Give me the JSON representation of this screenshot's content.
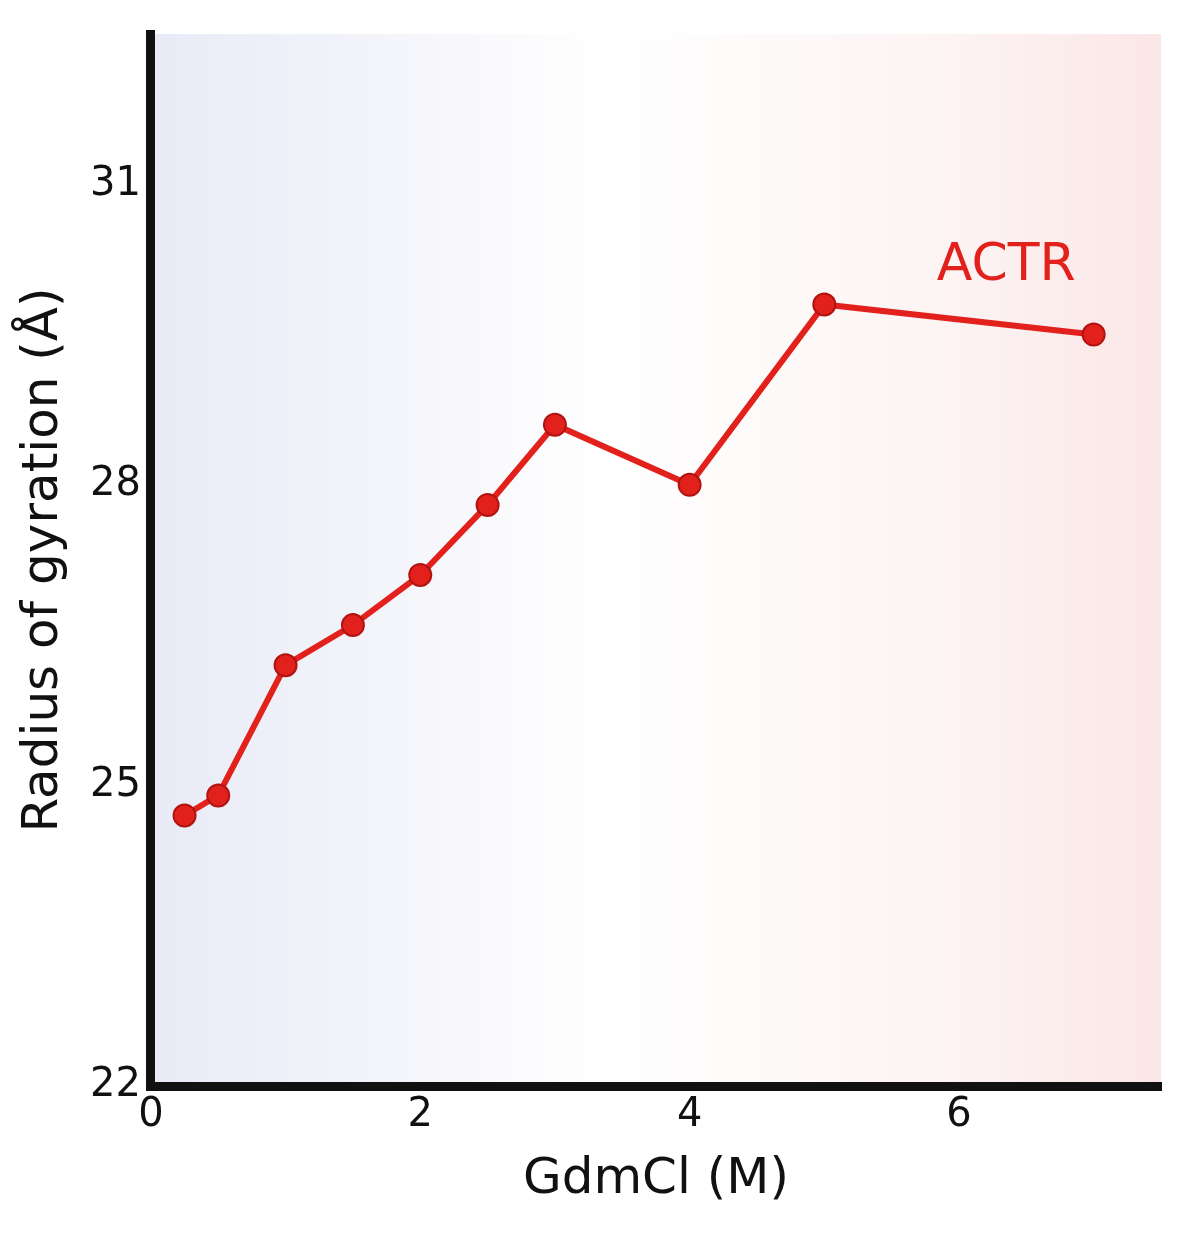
{
  "chart_data": {
    "type": "line",
    "x_label": "GdmCl (M)",
    "y_label": "Radius of gyration (Å)",
    "x": [
      0.25,
      0.5,
      1,
      1.5,
      2,
      2.5,
      3,
      4,
      5,
      7
    ],
    "series": [
      {
        "name": "ACTR",
        "color": "#e3211c",
        "marker": "circle",
        "line_style": "solid",
        "values": [
          24.7,
          24.9,
          26.2,
          26.6,
          27.1,
          27.8,
          28.6,
          28.0,
          29.8,
          29.5
        ]
      }
    ],
    "xlim": [
      0,
      7.5
    ],
    "xticks": [
      0,
      2,
      4,
      6
    ],
    "ylim": [
      22,
      32.5
    ],
    "yticks": [
      22,
      25,
      28,
      31
    ],
    "grid": false
  }
}
